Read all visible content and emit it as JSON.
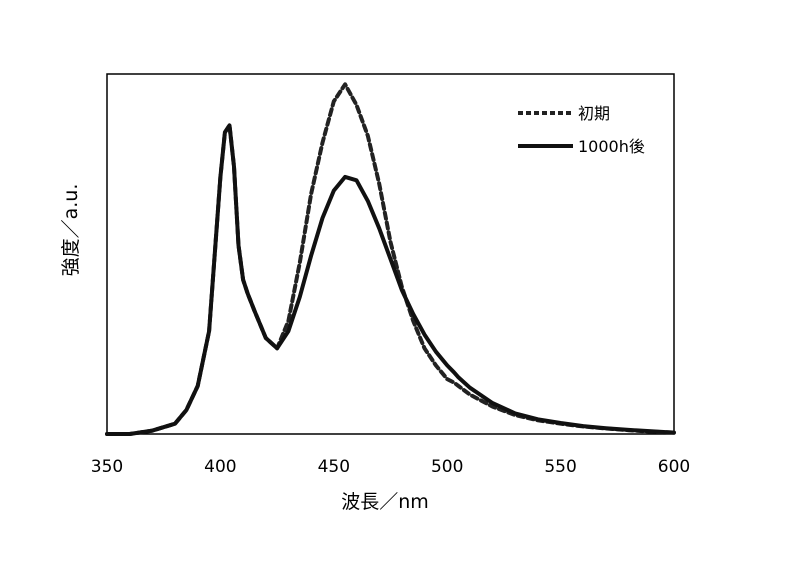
{
  "chart_data": {
    "type": "line",
    "title": "",
    "xlabel": "波長／nm",
    "ylabel": "強度／a.u.",
    "xlim": [
      350,
      600
    ],
    "ylim": [
      0,
      1.05
    ],
    "xticks": [
      "350",
      "400",
      "450",
      "500",
      "550",
      "600"
    ],
    "yticks_shown": false,
    "grid": false,
    "legend_position": "top-right",
    "series": [
      {
        "name": "初期",
        "style": "dashed",
        "color": "#222222",
        "x": [
          350,
          360,
          370,
          380,
          385,
          390,
          395,
          400,
          402,
          404,
          406,
          408,
          410,
          412,
          415,
          420,
          425,
          430,
          435,
          440,
          445,
          450,
          455,
          460,
          465,
          470,
          475,
          480,
          485,
          490,
          495,
          500,
          503,
          505,
          510,
          520,
          530,
          540,
          550,
          560,
          570,
          580,
          590,
          600
        ],
        "y": [
          0.0,
          0.0,
          0.01,
          0.03,
          0.07,
          0.14,
          0.3,
          0.75,
          0.88,
          0.9,
          0.78,
          0.55,
          0.45,
          0.41,
          0.36,
          0.28,
          0.25,
          0.33,
          0.5,
          0.7,
          0.85,
          0.97,
          1.02,
          0.96,
          0.87,
          0.73,
          0.56,
          0.43,
          0.33,
          0.25,
          0.2,
          0.16,
          0.15,
          0.14,
          0.115,
          0.08,
          0.055,
          0.04,
          0.03,
          0.022,
          0.016,
          0.011,
          0.007,
          0.004
        ]
      },
      {
        "name": "1000h後",
        "style": "solid",
        "color": "#111111",
        "x": [
          350,
          360,
          370,
          380,
          385,
          390,
          395,
          400,
          402,
          404,
          406,
          408,
          410,
          412,
          415,
          420,
          425,
          430,
          435,
          440,
          445,
          450,
          455,
          460,
          465,
          470,
          475,
          480,
          485,
          490,
          495,
          500,
          503,
          505,
          510,
          520,
          530,
          540,
          550,
          560,
          570,
          580,
          590,
          600
        ],
        "y": [
          0.0,
          0.0,
          0.01,
          0.03,
          0.07,
          0.14,
          0.3,
          0.75,
          0.88,
          0.9,
          0.78,
          0.55,
          0.45,
          0.41,
          0.36,
          0.28,
          0.25,
          0.3,
          0.4,
          0.52,
          0.63,
          0.71,
          0.75,
          0.74,
          0.68,
          0.6,
          0.51,
          0.42,
          0.35,
          0.29,
          0.24,
          0.2,
          0.18,
          0.165,
          0.135,
          0.09,
          0.06,
          0.043,
          0.032,
          0.023,
          0.017,
          0.012,
          0.008,
          0.004
        ]
      }
    ]
  }
}
